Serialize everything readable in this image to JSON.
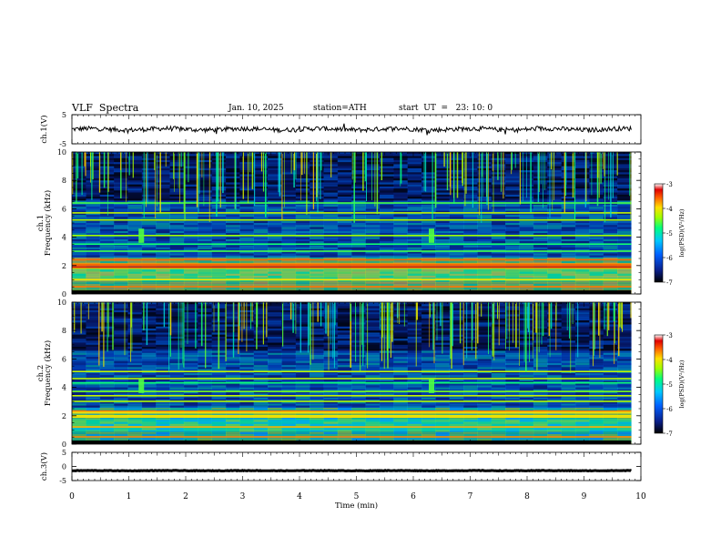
{
  "header": {
    "title": "VLF  Spectra",
    "date": "Jan. 10, 2025",
    "station": "station=ATH",
    "start": "start  UT  =   23: 10: 0"
  },
  "chart_data": [
    {
      "type": "line",
      "panel": "ch1-waveform",
      "ylabel": "ch.1(V)",
      "ylim": [
        -5,
        5
      ],
      "yticks": [
        "5",
        "-5"
      ],
      "xlim": [
        0,
        10
      ],
      "description_values": {
        "mean": 0,
        "amplitude": 0.8
      }
    },
    {
      "type": "heatmap",
      "panel": "ch1-spectrogram",
      "ylabel": "ch.1\nFrequency (kHz)",
      "ylabel_lines": [
        "ch.1",
        "Frequency (kHz)"
      ],
      "ylim": [
        0,
        10
      ],
      "yticks": [
        "0",
        "2",
        "4",
        "6",
        "8",
        "10"
      ],
      "xlim": [
        0,
        9.83
      ],
      "colorbar": {
        "label": "log(PSD)(V²/Hz)",
        "range": [
          -7,
          -3
        ],
        "ticks": [
          "-3",
          "-4",
          "-5",
          "-6",
          "-7"
        ]
      },
      "bands_khz": [
        0.5,
        1.0,
        1.8,
        2.1,
        2.4,
        3.0,
        3.5,
        4.1,
        5.2,
        5.7,
        6.4
      ]
    },
    {
      "type": "heatmap",
      "panel": "ch2-spectrogram",
      "ylabel": "ch.2\nFrequency (kHz)",
      "ylabel_lines": [
        "ch.2",
        "Frequency (kHz)"
      ],
      "ylim": [
        0,
        10
      ],
      "yticks": [
        "0",
        "2",
        "4",
        "6",
        "8",
        "10"
      ],
      "xlim": [
        0,
        9.83
      ],
      "colorbar": {
        "label": "log(PSD)(V²/Hz)",
        "range": [
          -7,
          -3
        ],
        "ticks": [
          "-3",
          "-4",
          "-5",
          "-6",
          "-7"
        ]
      },
      "bands_khz": [
        0.5,
        1.2,
        1.9,
        2.0,
        2.3,
        3.0,
        3.4,
        3.7,
        4.3,
        4.6,
        5.1
      ]
    },
    {
      "type": "line",
      "panel": "ch3-waveform",
      "ylabel": "ch.3(V)",
      "ylim": [
        -5,
        5
      ],
      "yticks": [
        "5",
        "0",
        "-5"
      ],
      "xlim": [
        0,
        10
      ],
      "xlabel": "Time  (min)",
      "xticks": [
        "0",
        "1",
        "2",
        "3",
        "4",
        "5",
        "6",
        "7",
        "8",
        "9",
        "10"
      ],
      "description_values": {
        "mean": -1.5,
        "amplitude": 0.1
      }
    }
  ],
  "colors": {
    "background_spectrogram": "#001a4d",
    "colormap": [
      "#000000",
      "#0a1f8a",
      "#0060ff",
      "#00c8ff",
      "#00ff80",
      "#a0ff00",
      "#ffe000",
      "#ff6000",
      "#e00000",
      "#ffffff"
    ]
  }
}
